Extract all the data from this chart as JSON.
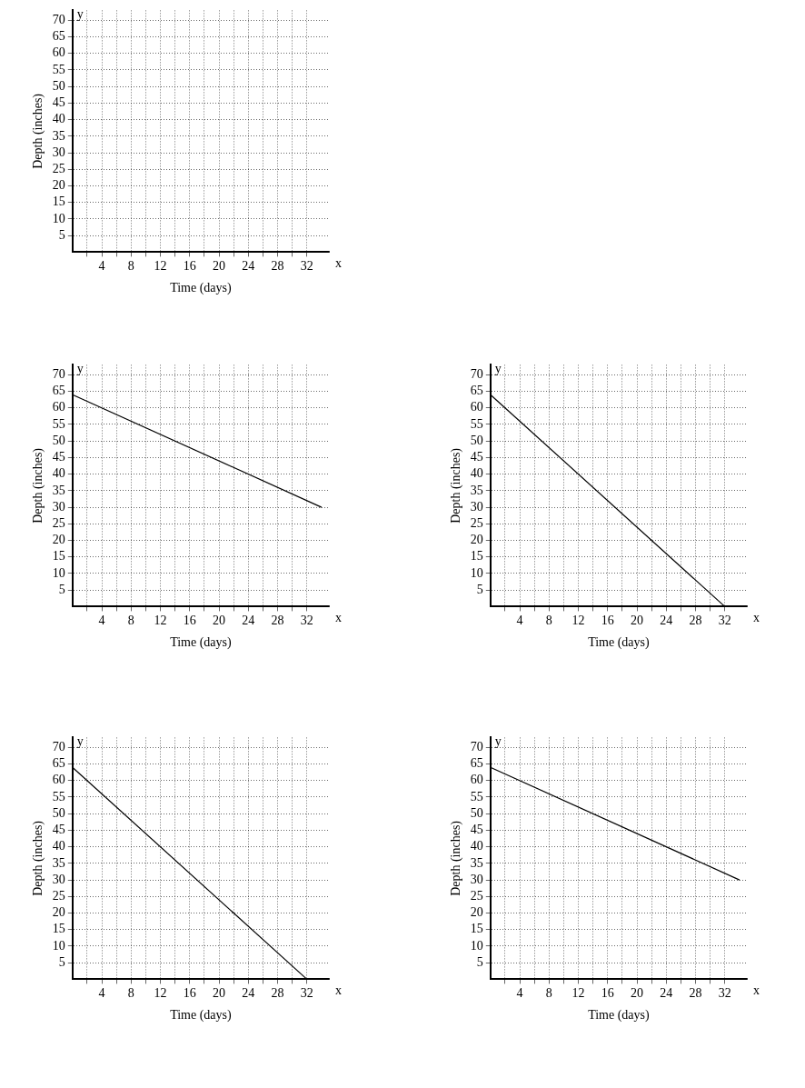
{
  "chart_data": [
    {
      "type": "line",
      "xlabel": "Time (days)",
      "ylabel": "Depth (inches)",
      "annotations": [
        "y",
        "x"
      ],
      "xlim": [
        0,
        35
      ],
      "ylim": [
        0,
        73
      ],
      "xticks": [
        {
          "value": 2,
          "label": null
        },
        4,
        {
          "value": 6,
          "label": null
        },
        8,
        {
          "value": 10,
          "label": null
        },
        12,
        {
          "value": 14,
          "label": null
        },
        16,
        {
          "value": 18,
          "label": null
        },
        20,
        {
          "value": 22,
          "label": null
        },
        24,
        {
          "value": 26,
          "label": null
        },
        28,
        {
          "value": 30,
          "label": null
        },
        32
      ],
      "yticks": [
        5,
        10,
        15,
        20,
        25,
        30,
        35,
        40,
        45,
        50,
        55,
        60,
        65,
        70
      ],
      "grid": true,
      "marker": "none"
    },
    {
      "type": "line",
      "xlabel": "Time (days)",
      "ylabel": "Depth (inches)",
      "annotations": [
        "y",
        "x"
      ],
      "xlim": [
        0,
        35
      ],
      "ylim": [
        0,
        73
      ],
      "xticks": [
        {
          "value": 2,
          "label": null
        },
        4,
        {
          "value": 6,
          "label": null
        },
        8,
        {
          "value": 10,
          "label": null
        },
        12,
        {
          "value": 14,
          "label": null
        },
        16,
        {
          "value": 18,
          "label": null
        },
        20,
        {
          "value": 22,
          "label": null
        },
        24,
        {
          "value": 26,
          "label": null
        },
        28,
        {
          "value": 30,
          "label": null
        },
        32
      ],
      "yticks": [
        5,
        10,
        15,
        20,
        25,
        30,
        35,
        40,
        45,
        50,
        55,
        60,
        65,
        70
      ],
      "grid": true,
      "marker": "none",
      "x": [
        0,
        34
      ],
      "series": [
        {
          "color": "#000000",
          "values": [
            64,
            30
          ]
        }
      ]
    },
    {
      "type": "line",
      "xlabel": "Time (days)",
      "ylabel": "Depth (inches)",
      "annotations": [
        "y",
        "x"
      ],
      "xlim": [
        0,
        35
      ],
      "ylim": [
        0,
        73
      ],
      "xticks": [
        {
          "value": 2,
          "label": null
        },
        4,
        {
          "value": 6,
          "label": null
        },
        8,
        {
          "value": 10,
          "label": null
        },
        12,
        {
          "value": 14,
          "label": null
        },
        16,
        {
          "value": 18,
          "label": null
        },
        20,
        {
          "value": 22,
          "label": null
        },
        24,
        {
          "value": 26,
          "label": null
        },
        28,
        {
          "value": 30,
          "label": null
        },
        32
      ],
      "yticks": [
        5,
        10,
        15,
        20,
        25,
        30,
        35,
        40,
        45,
        50,
        55,
        60,
        65,
        70
      ],
      "grid": true,
      "marker": "none",
      "x": [
        0,
        32
      ],
      "series": [
        {
          "color": "#000000",
          "values": [
            64,
            0
          ]
        }
      ]
    },
    {
      "type": "line",
      "xlabel": "Time (days)",
      "ylabel": "Depth (inches)",
      "annotations": [
        "y",
        "x"
      ],
      "xlim": [
        0,
        35
      ],
      "ylim": [
        0,
        73
      ],
      "xticks": [
        {
          "value": 2,
          "label": null
        },
        4,
        {
          "value": 6,
          "label": null
        },
        8,
        {
          "value": 10,
          "label": null
        },
        12,
        {
          "value": 14,
          "label": null
        },
        16,
        {
          "value": 18,
          "label": null
        },
        20,
        {
          "value": 22,
          "label": null
        },
        24,
        {
          "value": 26,
          "label": null
        },
        28,
        {
          "value": 30,
          "label": null
        },
        32
      ],
      "yticks": [
        5,
        10,
        15,
        20,
        25,
        30,
        35,
        40,
        45,
        50,
        55,
        60,
        65,
        70
      ],
      "grid": true,
      "marker": "none",
      "x": [
        0,
        32
      ],
      "series": [
        {
          "color": "#000000",
          "values": [
            64,
            0
          ]
        }
      ]
    },
    {
      "type": "line",
      "xlabel": "Time (days)",
      "ylabel": "Depth (inches)",
      "annotations": [
        "y",
        "x"
      ],
      "xlim": [
        0,
        35
      ],
      "ylim": [
        0,
        73
      ],
      "xticks": [
        {
          "value": 2,
          "label": null
        },
        4,
        {
          "value": 6,
          "label": null
        },
        8,
        {
          "value": 10,
          "label": null
        },
        12,
        {
          "value": 14,
          "label": null
        },
        16,
        {
          "value": 18,
          "label": null
        },
        20,
        {
          "value": 22,
          "label": null
        },
        24,
        {
          "value": 26,
          "label": null
        },
        28,
        {
          "value": 30,
          "label": null
        },
        32
      ],
      "yticks": [
        5,
        10,
        15,
        20,
        25,
        30,
        35,
        40,
        45,
        50,
        55,
        60,
        65,
        70
      ],
      "grid": true,
      "marker": "none",
      "x": [
        0,
        34
      ],
      "series": [
        {
          "color": "#000000",
          "values": [
            64,
            30
          ]
        }
      ]
    }
  ]
}
